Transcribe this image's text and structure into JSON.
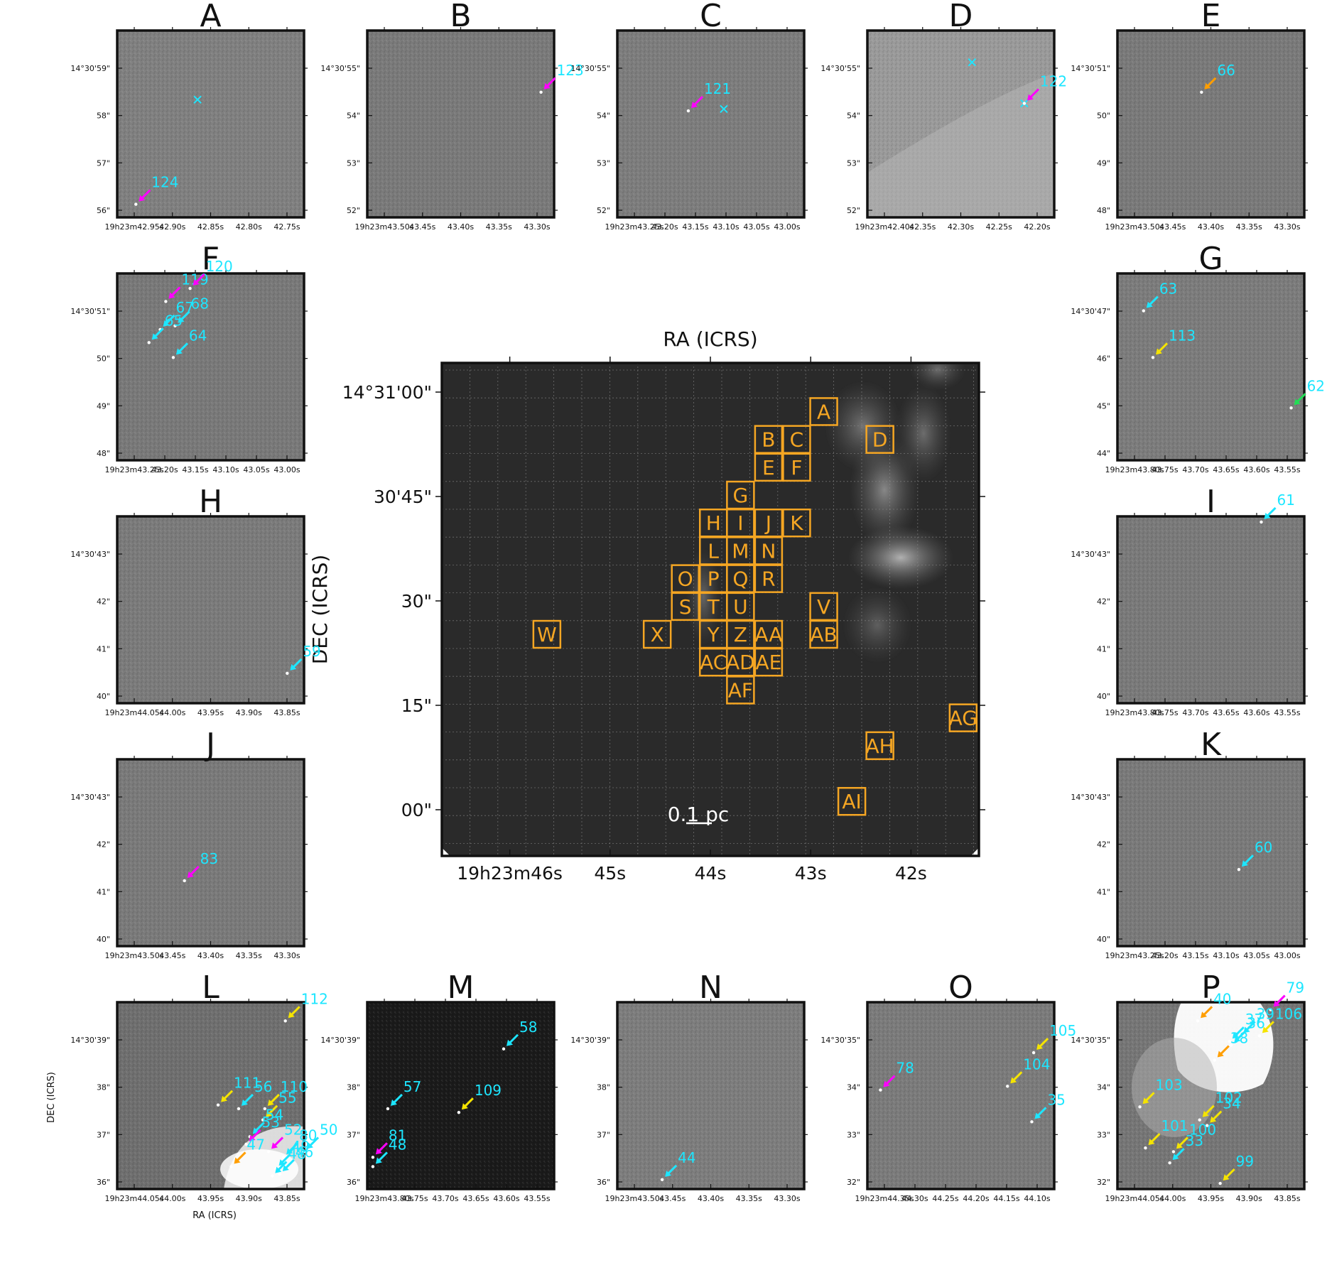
{
  "colors": {
    "cyan": "#1de6ff",
    "magenta": "#ff00ff",
    "orange": "#ff9e00",
    "yellow": "#f5e400",
    "green": "#22dd55",
    "box": "#f5a623"
  },
  "main": {
    "ra_title": "RA (ICRS)",
    "dec_title": "DEC (ICRS)",
    "ra_ticks": [
      {
        "label": "19h23m46s",
        "ra": 46
      },
      {
        "label": "45s",
        "ra": 45
      },
      {
        "label": "44s",
        "ra": 44
      },
      {
        "label": "43s",
        "ra": 43
      },
      {
        "label": "42s",
        "ra": 42
      }
    ],
    "dec_ticks": [
      {
        "label": "14°31'00\"",
        "dec": 60
      },
      {
        "label": "30'45\"",
        "dec": 45
      },
      {
        "label": "30\"",
        "dec": 30
      },
      {
        "label": "15\"",
        "dec": 15
      },
      {
        "label": "00\"",
        "dec": 0
      }
    ],
    "scalebar": "0.1 pc",
    "boxes": [
      {
        "label": "A",
        "ra": 42.87,
        "dec": 57.2
      },
      {
        "label": "B",
        "ra": 43.42,
        "dec": 53.2
      },
      {
        "label": "C",
        "ra": 43.14,
        "dec": 53.2
      },
      {
        "label": "D",
        "ra": 42.31,
        "dec": 53.2
      },
      {
        "label": "E",
        "ra": 43.42,
        "dec": 49.2
      },
      {
        "label": "F",
        "ra": 43.14,
        "dec": 49.2
      },
      {
        "label": "G",
        "ra": 43.7,
        "dec": 45.2
      },
      {
        "label": "H",
        "ra": 43.97,
        "dec": 41.2
      },
      {
        "label": "I",
        "ra": 43.7,
        "dec": 41.2
      },
      {
        "label": "J",
        "ra": 43.42,
        "dec": 41.2
      },
      {
        "label": "K",
        "ra": 43.14,
        "dec": 41.2
      },
      {
        "label": "L",
        "ra": 43.97,
        "dec": 37.2
      },
      {
        "label": "M",
        "ra": 43.7,
        "dec": 37.2
      },
      {
        "label": "N",
        "ra": 43.42,
        "dec": 37.2
      },
      {
        "label": "O",
        "ra": 44.25,
        "dec": 33.2
      },
      {
        "label": "P",
        "ra": 43.97,
        "dec": 33.2
      },
      {
        "label": "Q",
        "ra": 43.7,
        "dec": 33.2
      },
      {
        "label": "R",
        "ra": 43.42,
        "dec": 33.2
      },
      {
        "label": "S",
        "ra": 44.25,
        "dec": 29.2
      },
      {
        "label": "T",
        "ra": 43.97,
        "dec": 29.2
      },
      {
        "label": "U",
        "ra": 43.7,
        "dec": 29.2
      },
      {
        "label": "V",
        "ra": 42.87,
        "dec": 29.2
      },
      {
        "label": "W",
        "ra": 45.63,
        "dec": 25.2
      },
      {
        "label": "X",
        "ra": 44.53,
        "dec": 25.2
      },
      {
        "label": "Y",
        "ra": 43.97,
        "dec": 25.2
      },
      {
        "label": "Z",
        "ra": 43.7,
        "dec": 25.2
      },
      {
        "label": "AA",
        "ra": 43.42,
        "dec": 25.2
      },
      {
        "label": "AB",
        "ra": 42.87,
        "dec": 25.2
      },
      {
        "label": "AC",
        "ra": 43.97,
        "dec": 21.2
      },
      {
        "label": "AD",
        "ra": 43.7,
        "dec": 21.2
      },
      {
        "label": "AE",
        "ra": 43.42,
        "dec": 21.2
      },
      {
        "label": "AF",
        "ra": 43.7,
        "dec": 17.2
      },
      {
        "label": "AG",
        "ra": 41.48,
        "dec": 13.2
      },
      {
        "label": "AH",
        "ra": 42.31,
        "dec": 9.2
      },
      {
        "label": "AI",
        "ra": 42.59,
        "dec": 1.2
      }
    ]
  },
  "panels": [
    {
      "letter": "A",
      "xticks": [
        "19h23m42.95s",
        "42.90s",
        "42.85s",
        "42.80s",
        "42.75s"
      ],
      "yticks": [
        "14°30'59\"",
        "58\"",
        "57\"",
        "56\""
      ],
      "shade": "#808080",
      "sources": [
        {
          "label": "124",
          "color": "magenta",
          "u": 0.1,
          "v": 0.93
        }
      ],
      "crosses": [
        {
          "u": 0.43,
          "v": 0.37
        }
      ]
    },
    {
      "letter": "B",
      "xticks": [
        "19h23m43.50s",
        "43.45s",
        "43.40s",
        "43.35s",
        "43.30s"
      ],
      "yticks": [
        "14°30'55\"",
        "54\"",
        "53\"",
        "52\""
      ],
      "shade": "#7a7a7a",
      "sources": [
        {
          "label": "123",
          "color": "magenta",
          "u": 0.93,
          "v": 0.33
        }
      ],
      "crosses": []
    },
    {
      "letter": "C",
      "xticks": [
        "19h23m43.25s",
        "43.20s",
        "43.15s",
        "43.10s",
        "43.05s",
        "43.00s"
      ],
      "yticks": [
        "14°30'55\"",
        "54\"",
        "53\"",
        "52\""
      ],
      "shade": "#7d7d7d",
      "sources": [
        {
          "label": "121",
          "color": "magenta",
          "u": 0.38,
          "v": 0.43
        }
      ],
      "crosses": [
        {
          "u": 0.57,
          "v": 0.42
        }
      ]
    },
    {
      "letter": "D",
      "xticks": [
        "19h23m42.40s",
        "42.35s",
        "42.30s",
        "42.25s",
        "42.20s"
      ],
      "yticks": [
        "14°30'55\"",
        "54\"",
        "53\"",
        "52\""
      ],
      "shade": "#9a9a9a",
      "sources": [
        {
          "label": "122",
          "color": "magenta",
          "u": 0.84,
          "v": 0.39
        }
      ],
      "crosses": [
        {
          "u": 0.56,
          "v": 0.17
        },
        {
          "u": 0.84,
          "v": 0.39
        }
      ]
    },
    {
      "letter": "E",
      "xticks": [
        "19h23m43.50s",
        "43.45s",
        "43.40s",
        "43.35s",
        "43.30s"
      ],
      "yticks": [
        "14°30'51\"",
        "50\"",
        "49\"",
        "48\""
      ],
      "shade": "#7a7a7a",
      "sources": [
        {
          "label": "66",
          "color": "orange",
          "u": 0.45,
          "v": 0.33
        }
      ],
      "crosses": []
    },
    {
      "letter": "F",
      "xticks": [
        "19h23m43.25s",
        "43.20s",
        "43.15s",
        "43.10s",
        "43.05s",
        "43.00s"
      ],
      "yticks": [
        "14°30'51\"",
        "50\"",
        "49\"",
        "48\""
      ],
      "shade": "#797979",
      "sources": [
        {
          "label": "119",
          "color": "magenta",
          "u": 0.26,
          "v": 0.15
        },
        {
          "label": "120",
          "color": "magenta",
          "u": 0.39,
          "v": 0.08
        },
        {
          "label": "67",
          "color": "cyan",
          "u": 0.23,
          "v": 0.3
        },
        {
          "label": "68",
          "color": "cyan",
          "u": 0.31,
          "v": 0.28
        },
        {
          "label": "65",
          "color": "cyan",
          "u": 0.17,
          "v": 0.37
        },
        {
          "label": "64",
          "color": "cyan",
          "u": 0.3,
          "v": 0.45
        }
      ],
      "crosses": []
    },
    {
      "letter": "G",
      "xticks": [
        "19h23m43.80s",
        "43.75s",
        "43.70s",
        "43.65s",
        "43.60s",
        "43.55s"
      ],
      "yticks": [
        "14°30'47\"",
        "46\"",
        "45\"",
        "44\""
      ],
      "shade": "#7c7c7c",
      "sources": [
        {
          "label": "63",
          "color": "cyan",
          "u": 0.14,
          "v": 0.2
        },
        {
          "label": "113",
          "color": "yellow",
          "u": 0.19,
          "v": 0.45
        },
        {
          "label": "62",
          "color": "green",
          "u": 0.93,
          "v": 0.72
        }
      ],
      "crosses": []
    },
    {
      "letter": "H",
      "xticks": [
        "19h23m44.05s",
        "44.00s",
        "43.95s",
        "43.90s",
        "43.85s"
      ],
      "yticks": [
        "14°30'43\"",
        "42\"",
        "41\"",
        "40\""
      ],
      "shade": "#7b7b7b",
      "sources": [
        {
          "label": "59",
          "color": "cyan",
          "u": 0.91,
          "v": 0.84
        }
      ],
      "crosses": []
    },
    {
      "letter": "I",
      "xticks": [
        "19h23m43.80s",
        "43.75s",
        "43.70s",
        "43.65s",
        "43.60s",
        "43.55s"
      ],
      "yticks": [
        "14°30'43\"",
        "42\"",
        "41\"",
        "40\""
      ],
      "shade": "#7a7a7a",
      "sources": [
        {
          "label": "61",
          "color": "cyan",
          "u": 0.77,
          "v": 0.03
        }
      ],
      "crosses": []
    },
    {
      "letter": "J",
      "xticks": [
        "19h23m43.50s",
        "43.45s",
        "43.40s",
        "43.35s",
        "43.30s"
      ],
      "yticks": [
        "14°30'43\"",
        "42\"",
        "41\"",
        "40\""
      ],
      "shade": "#7a7a7a",
      "sources": [
        {
          "label": "83",
          "color": "magenta",
          "u": 0.36,
          "v": 0.65
        }
      ],
      "crosses": []
    },
    {
      "letter": "K",
      "xticks": [
        "19h23m43.25s",
        "43.20s",
        "43.15s",
        "43.10s",
        "43.05s",
        "43.00s"
      ],
      "yticks": [
        "14°30'43\"",
        "42\"",
        "41\"",
        "40\""
      ],
      "shade": "#7a7a7a",
      "sources": [
        {
          "label": "60",
          "color": "cyan",
          "u": 0.65,
          "v": 0.59
        }
      ],
      "crosses": []
    },
    {
      "letter": "L",
      "xticks": [
        "19h23m44.05s",
        "44.00s",
        "43.95s",
        "43.90s",
        "43.85s"
      ],
      "yticks": [
        "14°30'39\"",
        "38\"",
        "37\"",
        "36\""
      ],
      "shade": "#6f6f6f",
      "sources": [
        {
          "label": "112",
          "color": "yellow",
          "u": 0.9,
          "v": 0.1
        },
        {
          "label": "111",
          "color": "yellow",
          "u": 0.54,
          "v": 0.55
        },
        {
          "label": "56",
          "color": "cyan",
          "u": 0.65,
          "v": 0.57
        },
        {
          "label": "110",
          "color": "yellow",
          "u": 0.79,
          "v": 0.57
        },
        {
          "label": "55",
          "color": "yellow",
          "u": 0.78,
          "v": 0.63
        },
        {
          "label": "54",
          "color": "cyan",
          "u": 0.71,
          "v": 0.72
        },
        {
          "label": "53",
          "color": "magenta",
          "u": 0.69,
          "v": 0.76
        },
        {
          "label": "47",
          "color": "orange",
          "u": 0.61,
          "v": 0.88
        },
        {
          "label": "52",
          "color": "magenta",
          "u": 0.81,
          "v": 0.8
        },
        {
          "label": "50",
          "color": "cyan",
          "u": 1.0,
          "v": 0.8
        },
        {
          "label": "80",
          "color": "cyan",
          "u": 0.89,
          "v": 0.83
        },
        {
          "label": "49",
          "color": "cyan",
          "u": 0.85,
          "v": 0.89
        },
        {
          "label": "46",
          "color": "cyan",
          "u": 0.87,
          "v": 0.92
        },
        {
          "label": "48",
          "color": "cyan",
          "u": 0.83,
          "v": 0.93
        }
      ],
      "crosses": []
    },
    {
      "letter": "M",
      "xticks": [
        "19h23m43.80s",
        "43.75s",
        "43.70s",
        "43.65s",
        "43.60s",
        "43.55s"
      ],
      "yticks": [
        "14°30'39\"",
        "38\"",
        "37\"",
        "36\""
      ],
      "shade": "#1a1a1a",
      "sources": [
        {
          "label": "58",
          "color": "cyan",
          "u": 0.73,
          "v": 0.25
        },
        {
          "label": "57",
          "color": "cyan",
          "u": 0.11,
          "v": 0.57
        },
        {
          "label": "109",
          "color": "yellow",
          "u": 0.49,
          "v": 0.59
        },
        {
          "label": "81",
          "color": "magenta",
          "u": 0.03,
          "v": 0.83
        },
        {
          "label": "48",
          "color": "cyan",
          "u": 0.03,
          "v": 0.88
        }
      ],
      "crosses": []
    },
    {
      "letter": "N",
      "xticks": [
        "19h23m43.50s",
        "43.45s",
        "43.40s",
        "43.35s",
        "43.30s"
      ],
      "yticks": [
        "14°30'39\"",
        "38\"",
        "37\"",
        "36\""
      ],
      "shade": "#7d7d7d",
      "sources": [
        {
          "label": "44",
          "color": "cyan",
          "u": 0.24,
          "v": 0.95
        }
      ],
      "crosses": []
    },
    {
      "letter": "O",
      "xticks": [
        "19h23m44.35s",
        "44.30s",
        "44.25s",
        "44.20s",
        "44.15s",
        "44.10s"
      ],
      "yticks": [
        "14°30'35\"",
        "34\"",
        "33\"",
        "32\""
      ],
      "shade": "#7b7b7b",
      "sources": [
        {
          "label": "105",
          "color": "yellow",
          "u": 0.89,
          "v": 0.27
        },
        {
          "label": "104",
          "color": "yellow",
          "u": 0.75,
          "v": 0.45
        },
        {
          "label": "78",
          "color": "magenta",
          "u": 0.07,
          "v": 0.47
        },
        {
          "label": "35",
          "color": "cyan",
          "u": 0.88,
          "v": 0.64
        }
      ],
      "crosses": []
    },
    {
      "letter": "P",
      "xticks": [
        "19h23m44.05s",
        "44.00s",
        "43.95s",
        "43.90s",
        "43.85s"
      ],
      "yticks": [
        "14°30'35\"",
        "34\"",
        "33\"",
        "32\""
      ],
      "shade": "#767676",
      "sources": [
        {
          "label": "79",
          "color": "magenta",
          "u": 0.82,
          "v": 0.04
        },
        {
          "label": "40",
          "color": "orange",
          "u": 0.43,
          "v": 0.1
        },
        {
          "label": "39",
          "color": "cyan",
          "u": 0.66,
          "v": 0.18
        },
        {
          "label": "106",
          "color": "yellow",
          "u": 0.76,
          "v": 0.18
        },
        {
          "label": "37",
          "color": "cyan",
          "u": 0.6,
          "v": 0.21
        },
        {
          "label": "36",
          "color": "cyan",
          "u": 0.61,
          "v": 0.23
        },
        {
          "label": "38",
          "color": "orange",
          "u": 0.52,
          "v": 0.31
        },
        {
          "label": "103",
          "color": "yellow",
          "u": 0.12,
          "v": 0.56
        },
        {
          "label": "102",
          "color": "yellow",
          "u": 0.44,
          "v": 0.63
        },
        {
          "label": "34",
          "color": "yellow",
          "u": 0.48,
          "v": 0.66
        },
        {
          "label": "101",
          "color": "yellow",
          "u": 0.15,
          "v": 0.78
        },
        {
          "label": "100",
          "color": "yellow",
          "u": 0.3,
          "v": 0.8
        },
        {
          "label": "33",
          "color": "cyan",
          "u": 0.28,
          "v": 0.86
        },
        {
          "label": "99",
          "color": "yellow",
          "u": 0.55,
          "v": 0.97
        }
      ],
      "crosses": []
    }
  ],
  "panel_axis_titles": {
    "x": "RA (ICRS)",
    "y": "DEC (ICRS)"
  }
}
